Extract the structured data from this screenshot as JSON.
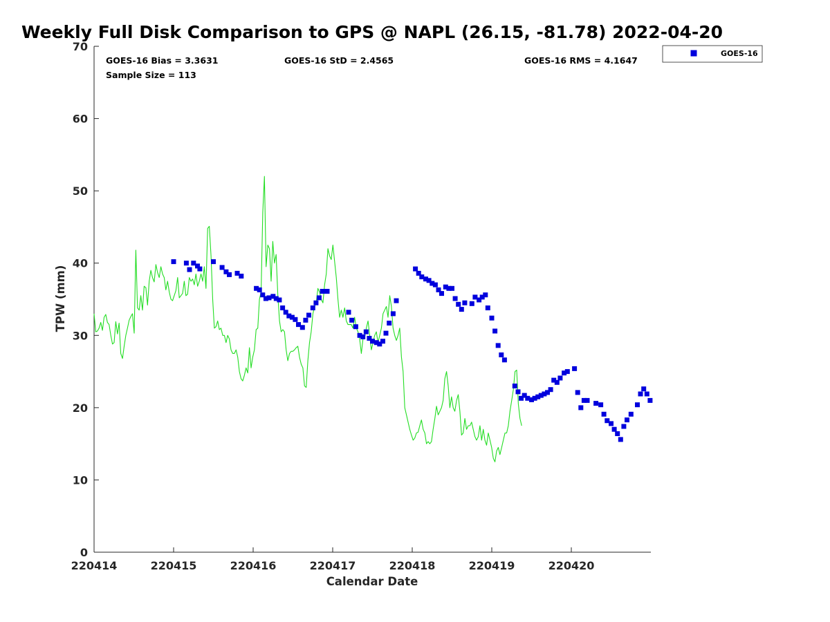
{
  "chart_data": {
    "type": "scatter",
    "title": "Weekly Full Disk Comparison to GPS @ NAPL (26.15, -81.78) 2022-04-20",
    "xlabel": "Calendar Date",
    "ylabel": "TPW (mm)",
    "xlim": [
      0,
      7
    ],
    "ylim": [
      0,
      70
    ],
    "x_ticks": [
      0,
      1,
      2,
      3,
      4,
      5,
      6
    ],
    "x_tick_labels": [
      "220414",
      "220415",
      "220416",
      "220417",
      "220418",
      "220419",
      "220420"
    ],
    "y_ticks": [
      0,
      10,
      20,
      30,
      40,
      50,
      60,
      70
    ],
    "y_tick_labels": [
      "0",
      "10",
      "20",
      "30",
      "40",
      "50",
      "60",
      "70"
    ],
    "stats": {
      "bias": "GOES-16 Bias = 3.3631",
      "std": "GOES-16 StD = 2.4565",
      "rms": "GOES-16 RMS = 4.1647",
      "sample": "Sample Size = 113"
    },
    "legend": {
      "placement": "top-right",
      "entries": [
        "GOES-16"
      ]
    },
    "colors": {
      "goes": "#0000dd",
      "gps": "#22dd22"
    },
    "series": [
      {
        "name": "GPS",
        "kind": "line",
        "x_start": 0.0,
        "x_step": 0.021,
        "values": [
          33,
          30.5,
          30.6,
          31,
          31.8,
          30.7,
          32.5,
          32.9,
          31.8,
          31.5,
          30,
          28.8,
          29,
          31.9,
          30.2,
          31.7,
          27.5,
          26.8,
          28.5,
          30,
          31,
          32.1,
          32.6,
          33,
          30.3,
          41.8,
          33.8,
          33.5,
          35.5,
          33.5,
          36.8,
          36.6,
          34.2,
          37.5,
          39,
          38,
          37.4,
          39.8,
          38.7,
          38,
          39.5,
          38.5,
          38,
          36.3,
          37.5,
          36,
          35,
          34.8,
          35.5,
          36.2,
          38,
          35.2,
          35.5,
          35.8,
          37.5,
          35.5,
          35.7,
          38,
          37.5,
          37.8,
          37,
          38.5,
          36.8,
          37.5,
          38.5,
          37.5,
          39.5,
          36.5,
          44.8,
          45.1,
          41,
          35,
          31,
          31.2,
          32,
          30.8,
          31,
          30,
          30,
          29,
          30,
          29.5,
          28,
          27.5,
          27.5,
          28,
          27,
          25,
          24,
          23.7,
          24.5,
          25.5,
          24.8,
          28.3,
          25.5,
          27,
          28,
          30.8,
          31,
          35,
          36,
          47,
          52,
          39.5,
          42.5,
          42,
          37.5,
          43,
          40,
          41.2,
          35.5,
          32,
          30.5,
          30.8,
          30.5,
          28,
          26.5,
          27.5,
          27.8,
          27.8,
          28,
          28.3,
          28.5,
          27,
          26,
          25.5,
          23,
          22.8,
          26.5,
          29,
          30.5,
          33,
          34,
          34.5,
          36.5,
          36,
          35,
          34.5,
          37,
          38.5,
          42,
          41,
          40.5,
          42.5,
          40.2,
          38,
          35,
          32.5,
          33.5,
          32.5,
          33.8,
          32,
          31.5,
          31.5,
          31.5,
          31,
          32.5,
          31,
          30.5,
          29.5,
          27.5,
          29.5,
          29.7,
          31,
          32,
          30,
          28,
          29,
          30,
          30.5,
          29,
          30,
          31,
          33,
          33.5,
          34,
          32.5,
          35.5,
          34,
          31,
          30,
          29.3,
          30,
          31,
          27,
          25,
          20,
          19,
          18,
          17,
          16.2,
          15.5,
          15.8,
          16.5,
          16.6,
          17.5,
          18.3,
          17,
          16.5,
          15,
          15.3,
          15,
          15.3,
          17,
          18.5,
          20.2,
          19,
          19.5,
          20,
          21,
          24,
          25,
          23,
          20,
          21.5,
          20,
          19.5,
          21,
          21.8,
          19.5,
          16.2,
          16.5,
          18.5,
          17,
          17.5,
          17.5,
          18,
          17,
          16,
          15.5,
          16,
          17.5,
          15.5,
          17,
          15.5,
          14.8,
          16.5,
          15.5,
          14.5,
          13,
          12.5,
          14,
          14.5,
          13.5,
          14.5,
          15.5,
          16.5,
          16.5,
          17.5,
          19.5,
          21,
          22.5,
          25,
          25.2,
          20.5,
          18.5,
          17.5
        ]
      },
      {
        "name": "GOES-16",
        "kind": "scatter",
        "points": [
          [
            1.0,
            40.2
          ],
          [
            1.16,
            40
          ],
          [
            1.2,
            39.1
          ],
          [
            1.25,
            40
          ],
          [
            1.3,
            39.6
          ],
          [
            1.33,
            39.2
          ],
          [
            1.5,
            40.2
          ],
          [
            1.61,
            39.4
          ],
          [
            1.66,
            38.8
          ],
          [
            1.7,
            38.4
          ],
          [
            1.8,
            38.6
          ],
          [
            1.85,
            38.2
          ],
          [
            2.04,
            36.5
          ],
          [
            2.08,
            36.3
          ],
          [
            2.12,
            35.6
          ],
          [
            2.16,
            35.1
          ],
          [
            2.2,
            35.2
          ],
          [
            2.25,
            35.4
          ],
          [
            2.29,
            35.1
          ],
          [
            2.33,
            34.9
          ],
          [
            2.37,
            33.8
          ],
          [
            2.41,
            33.2
          ],
          [
            2.45,
            32.7
          ],
          [
            2.49,
            32.5
          ],
          [
            2.53,
            32.2
          ],
          [
            2.57,
            31.5
          ],
          [
            2.62,
            31.1
          ],
          [
            2.66,
            32.1
          ],
          [
            2.7,
            32.8
          ],
          [
            2.75,
            33.8
          ],
          [
            2.79,
            34.5
          ],
          [
            2.83,
            35.2
          ],
          [
            2.87,
            36.1
          ],
          [
            2.93,
            36.1
          ],
          [
            3.2,
            33.2
          ],
          [
            3.24,
            32.1
          ],
          [
            3.29,
            31.2
          ],
          [
            3.34,
            30
          ],
          [
            3.38,
            29.8
          ],
          [
            3.42,
            30.5
          ],
          [
            3.46,
            29.6
          ],
          [
            3.5,
            29.2
          ],
          [
            3.55,
            29
          ],
          [
            3.59,
            28.8
          ],
          [
            3.63,
            29.2
          ],
          [
            3.67,
            30.3
          ],
          [
            3.71,
            31.7
          ],
          [
            3.76,
            33
          ],
          [
            3.8,
            34.8
          ],
          [
            4.04,
            39.2
          ],
          [
            4.08,
            38.6
          ],
          [
            4.12,
            38.1
          ],
          [
            4.17,
            37.8
          ],
          [
            4.21,
            37.6
          ],
          [
            4.25,
            37.2
          ],
          [
            4.29,
            37
          ],
          [
            4.33,
            36.3
          ],
          [
            4.37,
            35.8
          ],
          [
            4.42,
            36.7
          ],
          [
            4.46,
            36.5
          ],
          [
            4.5,
            36.5
          ],
          [
            4.54,
            35.1
          ],
          [
            4.58,
            34.3
          ],
          [
            4.62,
            33.6
          ],
          [
            4.66,
            34.5
          ],
          [
            4.75,
            34.4
          ],
          [
            4.79,
            35.3
          ],
          [
            4.84,
            34.9
          ],
          [
            4.88,
            35.3
          ],
          [
            4.92,
            35.6
          ],
          [
            4.95,
            33.8
          ],
          [
            5.0,
            32.4
          ],
          [
            5.04,
            30.6
          ],
          [
            5.08,
            28.6
          ],
          [
            5.12,
            27.3
          ],
          [
            5.16,
            26.6
          ],
          [
            5.29,
            23
          ],
          [
            5.33,
            22.2
          ],
          [
            5.37,
            21.3
          ],
          [
            5.41,
            21.7
          ],
          [
            5.45,
            21.3
          ],
          [
            5.5,
            21.1
          ],
          [
            5.54,
            21.3
          ],
          [
            5.58,
            21.5
          ],
          [
            5.62,
            21.7
          ],
          [
            5.66,
            21.9
          ],
          [
            5.7,
            22.1
          ],
          [
            5.74,
            22.5
          ],
          [
            5.78,
            23.8
          ],
          [
            5.82,
            23.5
          ],
          [
            5.86,
            24.1
          ],
          [
            5.91,
            24.8
          ],
          [
            5.95,
            25
          ],
          [
            6.04,
            25.4
          ],
          [
            6.08,
            22.1
          ],
          [
            6.12,
            20
          ],
          [
            6.16,
            21
          ],
          [
            6.2,
            21
          ],
          [
            6.31,
            20.6
          ],
          [
            6.37,
            20.4
          ],
          [
            6.41,
            19.1
          ],
          [
            6.45,
            18.2
          ],
          [
            6.5,
            17.8
          ],
          [
            6.54,
            17
          ],
          [
            6.58,
            16.4
          ],
          [
            6.62,
            15.6
          ],
          [
            6.66,
            17.4
          ],
          [
            6.7,
            18.3
          ],
          [
            6.75,
            19.1
          ],
          [
            6.83,
            20.4
          ],
          [
            6.87,
            21.9
          ],
          [
            6.91,
            22.6
          ],
          [
            6.95,
            21.9
          ],
          [
            6.99,
            21
          ]
        ]
      }
    ]
  }
}
